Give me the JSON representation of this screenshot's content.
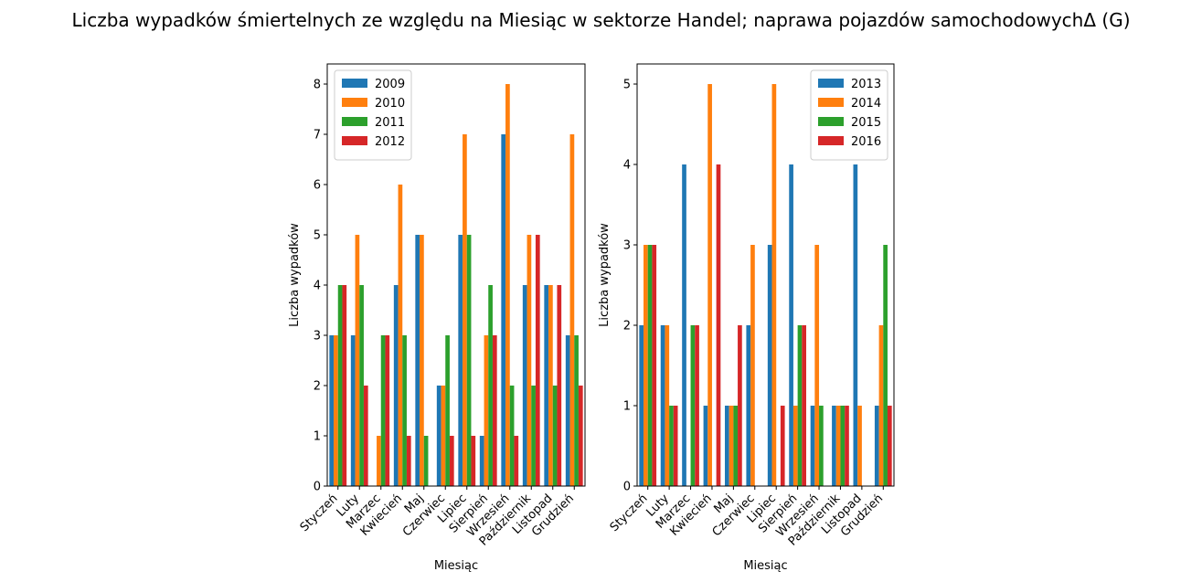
{
  "title": "Liczba wypadków śmiertelnych ze względu na Miesiąc w sektorze Handel; naprawa pojazdów samochodowychΔ  (G)",
  "chart_data": [
    {
      "type": "bar",
      "xlabel": "Miesiąc",
      "ylabel": "Liczba wypadków",
      "ylim": [
        0,
        8.4
      ],
      "yticks": [
        0,
        1,
        2,
        3,
        4,
        5,
        6,
        7,
        8
      ],
      "legend_position": "top-left",
      "categories": [
        "Styczeń",
        "Luty",
        "Marzec",
        "Kwiecień",
        "Maj",
        "Czerwiec",
        "Lipiec",
        "Sierpień",
        "Wrzesień",
        "Październik",
        "Listopad",
        "Grudzień"
      ],
      "series": [
        {
          "name": "2009",
          "color": "#1f77b4",
          "values": [
            3,
            3,
            0,
            4,
            5,
            2,
            5,
            1,
            7,
            4,
            4,
            3
          ]
        },
        {
          "name": "2010",
          "color": "#ff7f0e",
          "values": [
            3,
            5,
            1,
            6,
            5,
            2,
            7,
            3,
            8,
            5,
            4,
            7
          ]
        },
        {
          "name": "2011",
          "color": "#2ca02c",
          "values": [
            4,
            4,
            3,
            3,
            1,
            3,
            5,
            4,
            2,
            2,
            2,
            3
          ]
        },
        {
          "name": "2012",
          "color": "#d62728",
          "values": [
            4,
            2,
            3,
            1,
            0,
            1,
            1,
            3,
            1,
            5,
            4,
            2
          ]
        }
      ]
    },
    {
      "type": "bar",
      "xlabel": "Miesiąc",
      "ylabel": "Liczba wypadków",
      "ylim": [
        0,
        5.25
      ],
      "yticks": [
        0,
        1,
        2,
        3,
        4,
        5
      ],
      "legend_position": "top-right",
      "categories": [
        "Styczeń",
        "Luty",
        "Marzec",
        "Kwiecień",
        "Maj",
        "Czerwiec",
        "Lipiec",
        "Sierpień",
        "Wrzesień",
        "Październik",
        "Listopad",
        "Grudzień"
      ],
      "series": [
        {
          "name": "2013",
          "color": "#1f77b4",
          "values": [
            2,
            2,
            4,
            1,
            1,
            2,
            3,
            4,
            1,
            1,
            4,
            1
          ]
        },
        {
          "name": "2014",
          "color": "#ff7f0e",
          "values": [
            3,
            2,
            0,
            5,
            1,
            3,
            5,
            1,
            3,
            1,
            1,
            2
          ]
        },
        {
          "name": "2015",
          "color": "#2ca02c",
          "values": [
            3,
            1,
            2,
            0,
            1,
            0,
            0,
            2,
            1,
            1,
            0,
            3
          ]
        },
        {
          "name": "2016",
          "color": "#d62728",
          "values": [
            3,
            1,
            2,
            4,
            2,
            0,
            1,
            2,
            0,
            1,
            0,
            1
          ]
        }
      ]
    }
  ]
}
